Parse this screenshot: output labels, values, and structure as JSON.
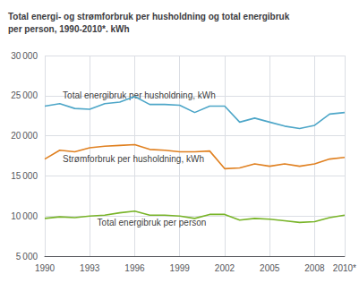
{
  "chart_data": {
    "type": "line",
    "title": "Total energi- og strømforbruk per husholdning og total energibruk\nper person, 1990-2010*. kWh",
    "x": [
      1990,
      1991,
      1992,
      1993,
      1994,
      1995,
      1996,
      1997,
      1998,
      1999,
      2000,
      2001,
      2002,
      2003,
      2004,
      2005,
      2006,
      2007,
      2008,
      2009,
      2010
    ],
    "series": [
      {
        "color": "#4da6c8",
        "values": [
          23700,
          24000,
          23400,
          23300,
          24000,
          24200,
          24900,
          23900,
          23900,
          23800,
          22900,
          23700,
          23700,
          21700,
          22200,
          21700,
          21200,
          20900,
          21300,
          22700,
          22900
        ]
      },
      {
        "color": "#e08020",
        "values": [
          17100,
          18200,
          18000,
          18500,
          18700,
          18800,
          18900,
          18300,
          18200,
          18000,
          18000,
          18100,
          15900,
          16000,
          16500,
          16200,
          16500,
          16200,
          16500,
          17100,
          17300
        ]
      },
      {
        "color": "#78b428",
        "values": [
          9700,
          9900,
          9800,
          10000,
          10100,
          10400,
          10600,
          10100,
          10100,
          10000,
          9700,
          10200,
          10200,
          9500,
          9700,
          9600,
          9400,
          9200,
          9300,
          9800,
          10100
        ]
      }
    ],
    "annotations": [
      {
        "text": "Total energibruk per husholdning, kWh",
        "x": 1991.2,
        "y": 24500
      },
      {
        "text": "Strømforbruk per husholdning, kWh",
        "x": 1991.2,
        "y": 16600
      },
      {
        "text": "Total energibruk per person",
        "x": 1993.5,
        "y": 8600
      }
    ],
    "xlim": [
      1990,
      2010
    ],
    "xticks": [
      1990,
      1993,
      1996,
      1999,
      2002,
      2005,
      2008,
      {
        "value": 2010,
        "label": "2010*"
      }
    ],
    "ylim": [
      5000,
      30000
    ],
    "yticks": [
      {
        "value": 5000,
        "label": "5 000"
      },
      {
        "value": 10000,
        "label": "10 000"
      },
      {
        "value": 15000,
        "label": "15 000"
      },
      {
        "value": 20000,
        "label": "20 000"
      },
      {
        "value": 25000,
        "label": "25 000"
      },
      {
        "value": 30000,
        "label": "30 000"
      }
    ],
    "grid": true
  }
}
